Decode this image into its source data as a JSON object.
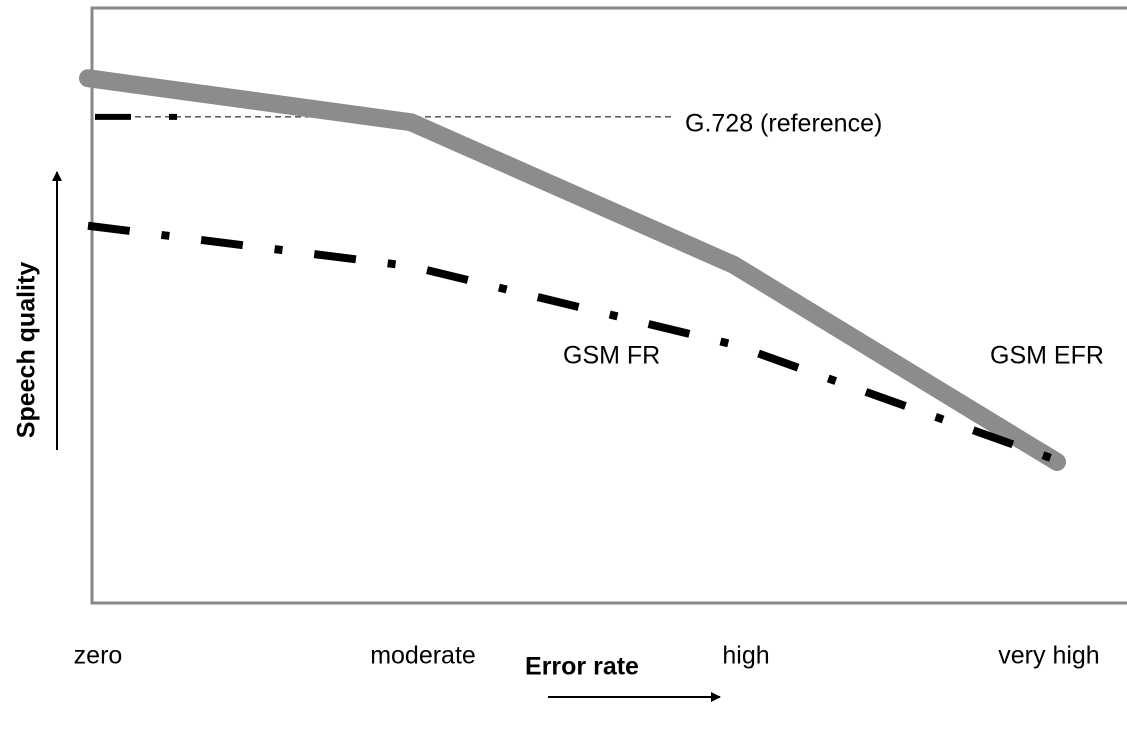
{
  "chart_data": {
    "type": "line",
    "categories": [
      "zero",
      "moderate",
      "high",
      "very high"
    ],
    "series": [
      {
        "name": "GSM EFR",
        "color": "#8c8c8c",
        "style": "solid",
        "values": [
          88.2,
          80.8,
          56.8,
          23.7
        ]
      },
      {
        "name": "GSM FR",
        "color": "#000000",
        "style": "dash-dot",
        "values": [
          63.4,
          56.6,
          43.4,
          24.0
        ]
      }
    ],
    "reference": {
      "label": "G.728 (reference)",
      "value": 81.7
    },
    "xlabel": "Error rate",
    "ylabel": "Speech quality",
    "ylim": [
      0,
      100
    ]
  }
}
